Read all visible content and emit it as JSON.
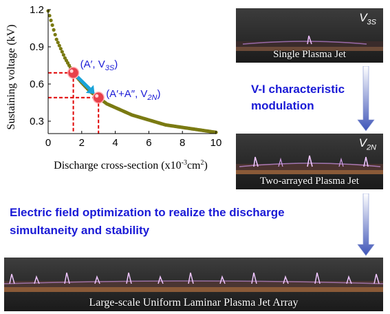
{
  "chart_data": {
    "type": "line",
    "xlabel": "Discharge cross-section (x10",
    "xlabel_sup": "-3",
    "xlabel_unit": "cm",
    "xlabel_unit_sup": "2",
    "xlabel_close": ")",
    "ylabel": "Sustaining voltage (kV)",
    "xlim": [
      0,
      10
    ],
    "ylim": [
      0.2,
      1.2
    ],
    "xticks": [
      "0",
      "2",
      "4",
      "6",
      "8",
      "10"
    ],
    "yticks": [
      "0.3",
      "0.6",
      "0.9",
      "1.2"
    ],
    "x": [
      0.0,
      0.5,
      1.0,
      1.5,
      2.0,
      2.5,
      3.0,
      3.5,
      4.0,
      4.5,
      5.0,
      5.5,
      6.0,
      6.5,
      7.0,
      7.5,
      8.0,
      8.5,
      9.0,
      9.5,
      10.0
    ],
    "y": [
      1.19,
      0.96,
      0.81,
      0.69,
      0.61,
      0.54,
      0.49,
      0.44,
      0.41,
      0.38,
      0.35,
      0.33,
      0.31,
      0.29,
      0.27,
      0.26,
      0.25,
      0.24,
      0.23,
      0.22,
      0.21
    ],
    "markers": [
      {
        "x": 1.5,
        "y": 0.69,
        "label_a": "(A′, V",
        "label_sub": "3S",
        "label_b": ")"
      },
      {
        "x": 3.0,
        "y": 0.49,
        "label_a": "(A′+A″, V",
        "label_sub": "2N",
        "label_b": ")"
      }
    ],
    "colors": {
      "curve": "#7a7a12",
      "marker": "#e8404a",
      "dash": "#e00000",
      "arrow": "#1aa3d9"
    }
  },
  "panels": {
    "single": {
      "caption": "Single Plasma Jet",
      "tag": "V",
      "tag_sub": "3S"
    },
    "two": {
      "caption": "Two-arrayed Plasma Jet",
      "tag": "V",
      "tag_sub": "2N"
    },
    "large": {
      "caption": "Large-scale Uniform Laminar Plasma Jet Array"
    }
  },
  "texts": {
    "modulation_line1": "V-I characteristic",
    "modulation_line2": "modulation",
    "optimization_line1": "Electric field optimization to realize the discharge",
    "optimization_line2": "simultaneity and stability"
  }
}
